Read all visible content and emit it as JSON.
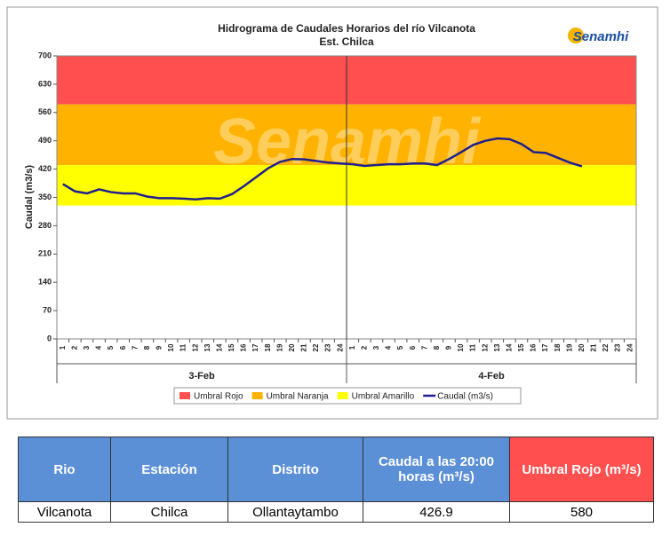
{
  "chart_data": {
    "type": "line",
    "title": "Hidrograma de Caudales Horarios del río Vilcanota",
    "subtitle": "Est. Chilca",
    "logo": "Senamhi",
    "ylabel": "Caudal  (m3/s)",
    "categories": [
      "1",
      "2",
      "3",
      "4",
      "5",
      "6",
      "7",
      "8",
      "9",
      "10",
      "11",
      "12",
      "13",
      "14",
      "15",
      "16",
      "17",
      "18",
      "19",
      "20",
      "21",
      "22",
      "23",
      "24",
      "1",
      "2",
      "3",
      "4",
      "5",
      "6",
      "7",
      "8",
      "9",
      "10",
      "11",
      "12",
      "13",
      "14",
      "15",
      "16",
      "17",
      "18",
      "19",
      "20",
      "21",
      "22",
      "23",
      "24"
    ],
    "groups": [
      "3-Feb",
      "4-Feb"
    ],
    "ylim": [
      0,
      700
    ],
    "yticks": [
      0,
      70,
      140,
      210,
      280,
      350,
      420,
      490,
      560,
      630,
      700
    ],
    "thresholds": [
      {
        "name": "Umbral Rojo",
        "color": "#ff4f4f",
        "from": 580,
        "to": 700
      },
      {
        "name": "Umbral Naranja",
        "color": "#ffb300",
        "from": 430,
        "to": 580
      },
      {
        "name": "Umbral Amarillo",
        "color": "#ffff00",
        "from": 330,
        "to": 430
      }
    ],
    "series": [
      {
        "name": "Caudal (m3/s)",
        "color": "#1f1f8f",
        "values": [
          383,
          365,
          360,
          370,
          363,
          360,
          360,
          352,
          348,
          348,
          347,
          345,
          348,
          347,
          358,
          378,
          400,
          422,
          438,
          445,
          444,
          440,
          436,
          434,
          432,
          428,
          430,
          432,
          432,
          434,
          434,
          430,
          445,
          462,
          480,
          490,
          496,
          494,
          482,
          462,
          460,
          448,
          436,
          426.9,
          null,
          null,
          null,
          null
        ]
      }
    ]
  },
  "table": {
    "header": [
      "Rio",
      "Estación",
      "Distrito",
      "Caudal a las 20:00 horas (m³/s)",
      "Umbral Rojo (m³/s)"
    ],
    "rows": [
      [
        "Vilcanota",
        "Chilca",
        "Ollantaytambo",
        "426.9",
        "580"
      ]
    ]
  }
}
